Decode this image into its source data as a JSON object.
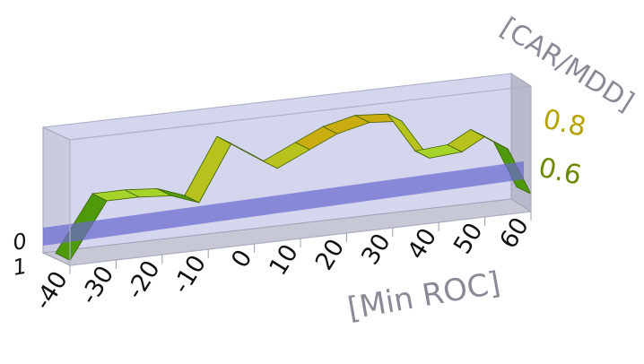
{
  "chart_data": {
    "type": "area",
    "subtype": "3d-ribbon",
    "xlabel": "[Min ROC]",
    "ylabel": "[CAR/MDD]",
    "x_ticks": [
      "-40",
      "-30",
      "-20",
      "-10",
      "0",
      "10",
      "20",
      "30",
      "40",
      "50",
      "60"
    ],
    "y_ticks": [
      "0.8",
      "0.6"
    ],
    "depth_ticks": [
      "0",
      "1"
    ],
    "xlim": [
      -40,
      60
    ],
    "ylim": [
      0.45,
      0.95
    ],
    "x": [
      -40,
      -32,
      -25,
      -18,
      -12,
      -5,
      0,
      5,
      12,
      18,
      25,
      32,
      38,
      45,
      50,
      55,
      60
    ],
    "values": [
      0.47,
      0.69,
      0.69,
      0.68,
      0.64,
      0.86,
      0.8,
      0.74,
      0.8,
      0.85,
      0.88,
      0.87,
      0.71,
      0.72,
      0.77,
      0.71,
      0.52
    ],
    "reference_level": 0.65,
    "grid": false,
    "colors": {
      "ribbon_low": "#2e8b00",
      "ribbon_mid": "#9acd32",
      "ribbon_high": "#c2a800",
      "plane": "#6a6ad0",
      "box_back": "#d4d6ee",
      "box_side": "#b8bacc",
      "floor": "#c6c8d6",
      "tick_y_high": "#b5a300",
      "tick_y_low": "#6b8a00"
    }
  }
}
